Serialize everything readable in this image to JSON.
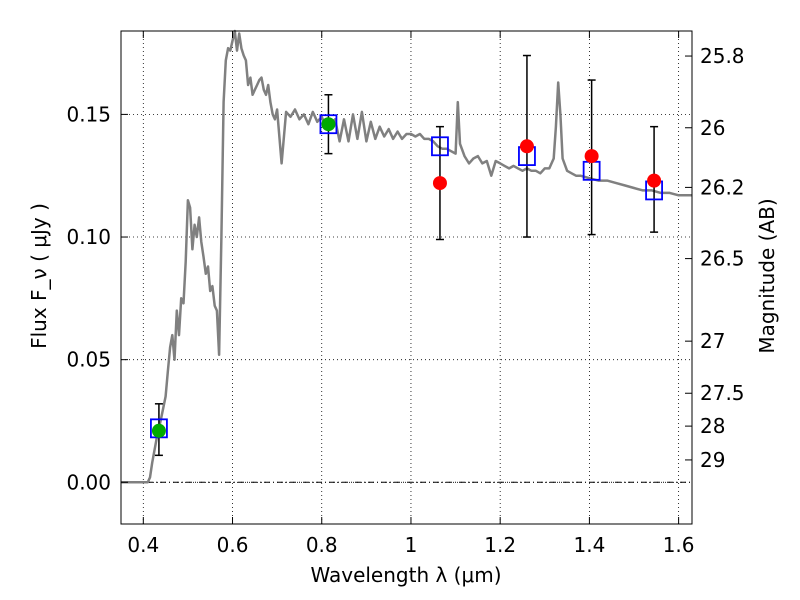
{
  "chart_data": {
    "type": "scatter",
    "title": "",
    "xlabel": "Wavelength  λ (μm)",
    "ylabel_left": "Flux  F_ν  ( μJy )",
    "ylabel_right": "Magnitude (AB)",
    "xlim": [
      0.35,
      1.63
    ],
    "ylim": [
      -0.017,
      0.184
    ],
    "grid": true,
    "x_ticks": [
      {
        "value": 0.4,
        "label": "0.4"
      },
      {
        "value": 0.6,
        "label": "0.6"
      },
      {
        "value": 0.8,
        "label": "0.8"
      },
      {
        "value": 1.0,
        "label": "1"
      },
      {
        "value": 1.2,
        "label": "1.2"
      },
      {
        "value": 1.4,
        "label": "1.4"
      },
      {
        "value": 1.6,
        "label": "1.6"
      }
    ],
    "y_ticks": [
      {
        "value": 0.0,
        "label": "0.00"
      },
      {
        "value": 0.05,
        "label": "0.05"
      },
      {
        "value": 0.1,
        "label": "0.10"
      },
      {
        "value": 0.15,
        "label": "0.15"
      }
    ],
    "right_ticks": [
      {
        "value": 25.8,
        "label": "25.8"
      },
      {
        "value": 26.0,
        "label": "26"
      },
      {
        "value": 26.2,
        "label": "26.2"
      },
      {
        "value": 26.5,
        "label": "26.5"
      },
      {
        "value": 27.0,
        "label": "27"
      },
      {
        "value": 27.5,
        "label": "27.5"
      },
      {
        "value": 28.0,
        "label": "28"
      },
      {
        "value": 29.0,
        "label": "29"
      }
    ],
    "model_spectrum": {
      "color": "#808080",
      "x": [
        0.35,
        0.41,
        0.415,
        0.42,
        0.43,
        0.44,
        0.45,
        0.455,
        0.46,
        0.465,
        0.47,
        0.475,
        0.48,
        0.485,
        0.49,
        0.495,
        0.5,
        0.505,
        0.51,
        0.515,
        0.52,
        0.525,
        0.53,
        0.535,
        0.54,
        0.545,
        0.55,
        0.555,
        0.56,
        0.565,
        0.57,
        0.575,
        0.58,
        0.585,
        0.59,
        0.595,
        0.6,
        0.605,
        0.61,
        0.615,
        0.62,
        0.625,
        0.63,
        0.635,
        0.64,
        0.645,
        0.65,
        0.655,
        0.66,
        0.665,
        0.67,
        0.675,
        0.68,
        0.685,
        0.69,
        0.695,
        0.7,
        0.71,
        0.72,
        0.73,
        0.74,
        0.75,
        0.76,
        0.77,
        0.78,
        0.79,
        0.8,
        0.81,
        0.82,
        0.83,
        0.84,
        0.85,
        0.86,
        0.87,
        0.88,
        0.89,
        0.9,
        0.91,
        0.92,
        0.93,
        0.94,
        0.95,
        0.96,
        0.97,
        0.98,
        0.99,
        1.0,
        1.01,
        1.02,
        1.03,
        1.04,
        1.05,
        1.06,
        1.07,
        1.08,
        1.09,
        1.1,
        1.105,
        1.11,
        1.12,
        1.13,
        1.14,
        1.15,
        1.16,
        1.17,
        1.18,
        1.19,
        1.2,
        1.21,
        1.22,
        1.23,
        1.24,
        1.25,
        1.26,
        1.27,
        1.28,
        1.29,
        1.3,
        1.31,
        1.32,
        1.325,
        1.33,
        1.335,
        1.34,
        1.35,
        1.36,
        1.37,
        1.38,
        1.4,
        1.42,
        1.44,
        1.46,
        1.48,
        1.5,
        1.52,
        1.54,
        1.56,
        1.58,
        1.6,
        1.63
      ],
      "y": [
        0.0,
        0.0,
        0.002,
        0.008,
        0.018,
        0.026,
        0.035,
        0.045,
        0.055,
        0.06,
        0.05,
        0.07,
        0.06,
        0.075,
        0.073,
        0.09,
        0.115,
        0.112,
        0.095,
        0.105,
        0.1,
        0.108,
        0.098,
        0.092,
        0.085,
        0.088,
        0.078,
        0.08,
        0.072,
        0.07,
        0.052,
        0.1,
        0.155,
        0.172,
        0.177,
        0.176,
        0.18,
        0.184,
        0.176,
        0.183,
        0.177,
        0.174,
        0.172,
        0.162,
        0.165,
        0.158,
        0.16,
        0.162,
        0.164,
        0.165,
        0.16,
        0.158,
        0.162,
        0.155,
        0.15,
        0.148,
        0.152,
        0.13,
        0.151,
        0.149,
        0.152,
        0.148,
        0.15,
        0.146,
        0.151,
        0.147,
        0.149,
        0.145,
        0.146,
        0.148,
        0.139,
        0.148,
        0.139,
        0.15,
        0.14,
        0.151,
        0.139,
        0.147,
        0.14,
        0.145,
        0.141,
        0.144,
        0.14,
        0.143,
        0.14,
        0.142,
        0.142,
        0.141,
        0.142,
        0.14,
        0.14,
        0.139,
        0.137,
        0.136,
        0.136,
        0.135,
        0.134,
        0.155,
        0.138,
        0.133,
        0.13,
        0.132,
        0.133,
        0.13,
        0.131,
        0.125,
        0.131,
        0.13,
        0.129,
        0.128,
        0.129,
        0.128,
        0.127,
        0.128,
        0.127,
        0.127,
        0.126,
        0.128,
        0.128,
        0.132,
        0.145,
        0.163,
        0.15,
        0.132,
        0.127,
        0.126,
        0.125,
        0.125,
        0.124,
        0.123,
        0.123,
        0.122,
        0.121,
        0.12,
        0.119,
        0.119,
        0.118,
        0.118,
        0.117,
        0.117
      ]
    },
    "series": [
      {
        "marker": "open-square",
        "color": "#0000ff",
        "points": [
          {
            "x": 0.435,
            "y": 0.022
          },
          {
            "x": 0.815,
            "y": 0.146
          },
          {
            "x": 1.065,
            "y": 0.137
          },
          {
            "x": 1.26,
            "y": 0.133
          },
          {
            "x": 1.405,
            "y": 0.127
          },
          {
            "x": 1.545,
            "y": 0.119
          }
        ]
      },
      {
        "marker": "filled-circle",
        "color": "#00aa00",
        "points": [
          {
            "x": 0.435,
            "y": 0.021,
            "err_low": 0.011,
            "err_high": 0.032
          },
          {
            "x": 0.815,
            "y": 0.146,
            "err_low": 0.134,
            "err_high": 0.158
          }
        ]
      },
      {
        "marker": "filled-circle",
        "color": "#ff0000",
        "points": [
          {
            "x": 1.065,
            "y": 0.122,
            "err_low": 0.099,
            "err_high": 0.145
          },
          {
            "x": 1.26,
            "y": 0.137,
            "err_low": 0.1,
            "err_high": 0.174
          },
          {
            "x": 1.405,
            "y": 0.133,
            "err_low": 0.101,
            "err_high": 0.164
          },
          {
            "x": 1.545,
            "y": 0.123,
            "err_low": 0.102,
            "err_high": 0.145
          }
        ]
      }
    ]
  }
}
